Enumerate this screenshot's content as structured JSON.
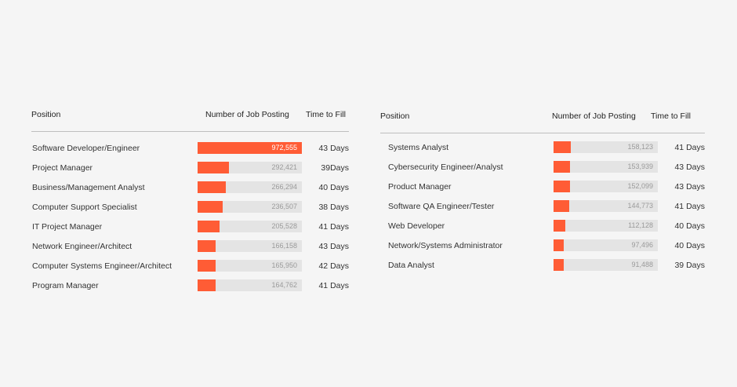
{
  "chart_data": [
    {
      "type": "bar",
      "columns": [
        "Position",
        "Number of Job Posting",
        "Time to Fill"
      ],
      "categories": [
        "Software Developer/Engineer",
        "Project Manager",
        "Business/Management Analyst",
        "Computer Support Specialist",
        "IT Project Manager",
        "Network Engineer/Architect",
        "Computer Systems Engineer/Architect",
        "Program Manager"
      ],
      "values": [
        972555,
        292421,
        266294,
        236507,
        205528,
        166158,
        165950,
        164762
      ],
      "value_labels": [
        "972,555",
        "292,421",
        "266,294",
        "236,507",
        "205,528",
        "166,158",
        "165,950",
        "164,762"
      ],
      "time_to_fill": [
        "43 Days",
        "39Days",
        "40 Days",
        "38 Days",
        "41 Days",
        "43 Days",
        "42 Days",
        "41 Days"
      ],
      "xlim": [
        0,
        972555
      ]
    },
    {
      "type": "bar",
      "columns": [
        "Position",
        "Number of Job Posting",
        "Time to Fill"
      ],
      "categories": [
        "Systems Analyst",
        "Cybersecurity Engineer/Analyst",
        "Product Manager",
        "Software QA Engineer/Tester",
        "Web Developer",
        "Network/Systems Administrator",
        "Data Analyst"
      ],
      "values": [
        158123,
        153939,
        152099,
        144773,
        112128,
        97496,
        91488
      ],
      "value_labels": [
        "158,123",
        "153,939",
        "152,099",
        "144,773",
        "112,128",
        "97,496",
        "91,488"
      ],
      "time_to_fill": [
        "41 Days",
        "43 Days",
        "43 Days",
        "41 Days",
        "40 Days",
        "40 Days",
        "39 Days"
      ],
      "xlim": [
        0,
        972555
      ]
    }
  ],
  "colors": {
    "bar": "#ff5c35",
    "track": "#e4e4e4"
  }
}
